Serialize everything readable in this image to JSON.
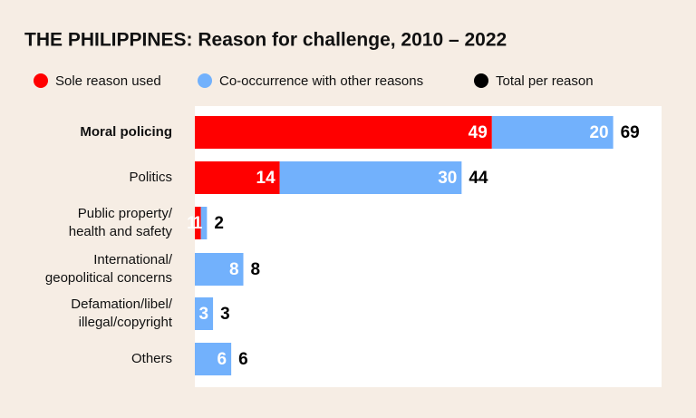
{
  "chart_data": {
    "type": "stacked-bar-horizontal",
    "title": "THE PHILIPPINES: Reason for challenge, 2010 – 2022",
    "categories": [
      "Moral policing",
      "Politics",
      "Public property/\nhealth and safety",
      "International/\ngeopolitical concerns",
      "Defamation/libel/\nillegal/copyright",
      "Others"
    ],
    "series": [
      {
        "name": "Sole reason used",
        "color": "#ff0000",
        "values": [
          49,
          14,
          1,
          null,
          null,
          null
        ]
      },
      {
        "name": "Co-occurrence with other reasons",
        "color": "#72b1fc",
        "values": [
          20,
          30,
          1,
          8,
          3,
          6
        ]
      },
      {
        "name": "Total per reason",
        "color": "#000000",
        "values": [
          69,
          44,
          2,
          8,
          3,
          6
        ]
      }
    ]
  }
}
